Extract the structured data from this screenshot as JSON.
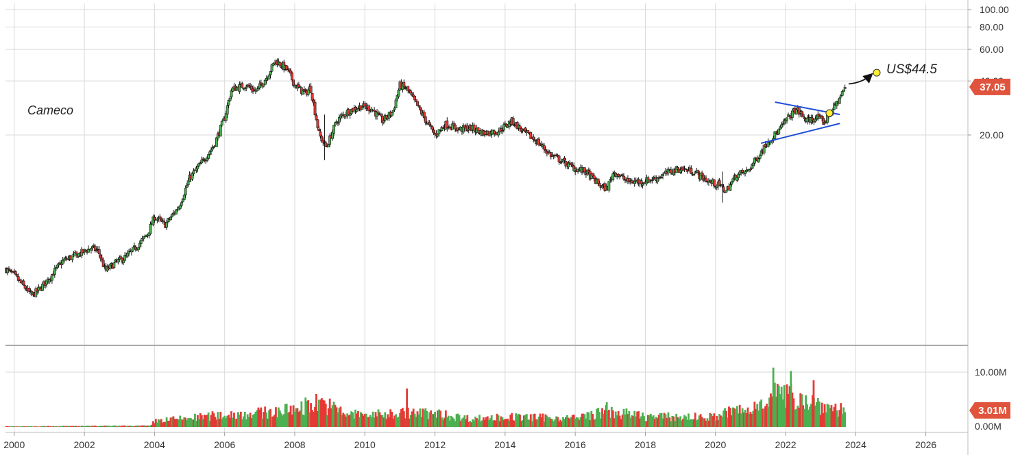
{
  "chart_data": {
    "type": "candlestick",
    "title": "Cameco",
    "grid": true,
    "price_axis": {
      "scale": "log",
      "ticks": [
        {
          "value": 100,
          "label": "100.00"
        },
        {
          "value": 80,
          "label": "80.00"
        },
        {
          "value": 60,
          "label": "60.00"
        },
        {
          "value": 40,
          "label": "40.00"
        },
        {
          "value": 20,
          "label": "20.00"
        }
      ],
      "current_value_label": "37.05"
    },
    "volume_axis": {
      "ticks": [
        {
          "value": 10000000,
          "label": "10.00M"
        },
        {
          "value": 0,
          "label": "0.00M"
        }
      ],
      "current_value_label": "3.01M"
    },
    "x_axis": {
      "range": [
        1999.75,
        2027.2
      ],
      "ticks": [
        {
          "value": 2000,
          "label": "2000"
        },
        {
          "value": 2002,
          "label": "2002"
        },
        {
          "value": 2004,
          "label": "2004"
        },
        {
          "value": 2006,
          "label": "2006"
        },
        {
          "value": 2008,
          "label": "2008"
        },
        {
          "value": 2010,
          "label": "2010"
        },
        {
          "value": 2012,
          "label": "2012"
        },
        {
          "value": 2014,
          "label": "2014"
        },
        {
          "value": 2016,
          "label": "2016"
        },
        {
          "value": 2018,
          "label": "2018"
        },
        {
          "value": 2020,
          "label": "2020"
        },
        {
          "value": 2022,
          "label": "2022"
        },
        {
          "value": 2024,
          "label": "2024"
        },
        {
          "value": 2026,
          "label": "2026"
        }
      ]
    },
    "price_path": [
      [
        1999.75,
        3.6
      ],
      [
        2000.0,
        3.3
      ],
      [
        2000.25,
        2.9
      ],
      [
        2000.5,
        2.55
      ],
      [
        2000.75,
        2.8
      ],
      [
        2001.0,
        3.2
      ],
      [
        2001.4,
        4.0
      ],
      [
        2001.8,
        4.3
      ],
      [
        2002.2,
        4.7
      ],
      [
        2002.4,
        4.5
      ],
      [
        2002.6,
        3.5
      ],
      [
        2002.9,
        3.9
      ],
      [
        2003.2,
        4.2
      ],
      [
        2003.5,
        4.8
      ],
      [
        2003.8,
        5.6
      ],
      [
        2004.0,
        7.0
      ],
      [
        2004.3,
        6.3
      ],
      [
        2004.7,
        8.0
      ],
      [
        2005.0,
        11.5
      ],
      [
        2005.4,
        14.5
      ],
      [
        2005.7,
        17.5
      ],
      [
        2006.0,
        25.0
      ],
      [
        2006.2,
        36.0
      ],
      [
        2006.6,
        38.0
      ],
      [
        2006.9,
        35.0
      ],
      [
        2007.2,
        42.0
      ],
      [
        2007.45,
        52.0
      ],
      [
        2007.8,
        46.0
      ],
      [
        2008.0,
        38.0
      ],
      [
        2008.3,
        34.0
      ],
      [
        2008.45,
        37.0
      ],
      [
        2008.7,
        20.0
      ],
      [
        2008.9,
        17.0
      ],
      [
        2009.2,
        24.0
      ],
      [
        2009.5,
        27.0
      ],
      [
        2009.9,
        29.0
      ],
      [
        2010.2,
        28.0
      ],
      [
        2010.5,
        24.0
      ],
      [
        2010.8,
        27.0
      ],
      [
        2011.0,
        38.0
      ],
      [
        2011.2,
        36.0
      ],
      [
        2011.5,
        29.0
      ],
      [
        2011.8,
        23.0
      ],
      [
        2012.0,
        20.0
      ],
      [
        2012.3,
        23.0
      ],
      [
        2012.7,
        21.5
      ],
      [
        2013.0,
        22.0
      ],
      [
        2013.4,
        20.5
      ],
      [
        2013.8,
        21.0
      ],
      [
        2014.2,
        24.0
      ],
      [
        2014.5,
        21.0
      ],
      [
        2014.9,
        18.5
      ],
      [
        2015.3,
        15.5
      ],
      [
        2015.7,
        14.0
      ],
      [
        2016.0,
        13.0
      ],
      [
        2016.3,
        12.5
      ],
      [
        2016.7,
        10.5
      ],
      [
        2016.9,
        10.0
      ],
      [
        2017.1,
        12.5
      ],
      [
        2017.5,
        11.0
      ],
      [
        2017.9,
        11.0
      ],
      [
        2018.3,
        11.5
      ],
      [
        2018.7,
        12.5
      ],
      [
        2019.0,
        13.0
      ],
      [
        2019.4,
        12.5
      ],
      [
        2019.8,
        11.0
      ],
      [
        2020.1,
        10.5
      ],
      [
        2020.3,
        9.7
      ],
      [
        2020.6,
        12.0
      ],
      [
        2020.9,
        12.5
      ],
      [
        2021.2,
        15.0
      ],
      [
        2021.5,
        18.5
      ],
      [
        2021.8,
        21.0
      ],
      [
        2022.0,
        24.0
      ],
      [
        2022.3,
        28.0
      ],
      [
        2022.6,
        24.0
      ],
      [
        2022.9,
        25.0
      ],
      [
        2023.1,
        23.5
      ],
      [
        2023.3,
        27.0
      ],
      [
        2023.5,
        31.0
      ],
      [
        2023.7,
        37.05
      ]
    ],
    "volume_path": [
      [
        1999.75,
        0.1
      ],
      [
        2003.9,
        0.2
      ],
      [
        2004.0,
        1.1
      ],
      [
        2005.0,
        1.6
      ],
      [
        2006.0,
        2.2
      ],
      [
        2007.0,
        2.5
      ],
      [
        2007.8,
        3.0
      ],
      [
        2008.7,
        4.5
      ],
      [
        2009.5,
        2.3
      ],
      [
        2010.5,
        2.2
      ],
      [
        2011.0,
        2.6
      ],
      [
        2012.0,
        2.4
      ],
      [
        2013.0,
        1.5
      ],
      [
        2014.0,
        1.8
      ],
      [
        2015.0,
        1.7
      ],
      [
        2016.0,
        1.6
      ],
      [
        2016.9,
        2.8
      ],
      [
        2018.0,
        1.9
      ],
      [
        2019.0,
        1.8
      ],
      [
        2020.0,
        1.8
      ],
      [
        2020.5,
        3.0
      ],
      [
        2021.0,
        2.8
      ],
      [
        2021.6,
        6.5
      ],
      [
        2022.0,
        5.5
      ],
      [
        2022.5,
        5.3
      ],
      [
        2023.0,
        4.0
      ],
      [
        2023.7,
        3.01
      ]
    ],
    "volume_spikes": [
      {
        "x": 2008.75,
        "value": 5.0,
        "dir": "down"
      },
      {
        "x": 2011.2,
        "value": 7.0,
        "dir": "down"
      },
      {
        "x": 2016.9,
        "value": 4.5,
        "dir": "up"
      },
      {
        "x": 2021.65,
        "value": 10.8,
        "dir": "up"
      },
      {
        "x": 2022.15,
        "value": 10.2,
        "dir": "up"
      },
      {
        "x": 2022.8,
        "value": 8.5,
        "dir": "down"
      }
    ],
    "annotations": {
      "target_label": "US$44.5",
      "target_x": 2024.6,
      "target_value": 44.5,
      "breakout_x": 2023.25,
      "breakout_value": 26.5,
      "arrow_from_x": 2023.8,
      "arrow_from_value": 38.5,
      "triangle": {
        "upper": [
          [
            2021.7,
            30.5
          ],
          [
            2023.55,
            26.0
          ]
        ],
        "lower": [
          [
            2021.3,
            18.0
          ],
          [
            2023.55,
            23.2
          ]
        ]
      }
    }
  },
  "colors": {
    "up": "#4caf50",
    "down": "#e53935",
    "wick": "#111111",
    "grid": "#d9d9d9",
    "trendline": "#1f4fd8",
    "marker_fill": "#ffee33",
    "tag_bg": "#e0533c"
  }
}
